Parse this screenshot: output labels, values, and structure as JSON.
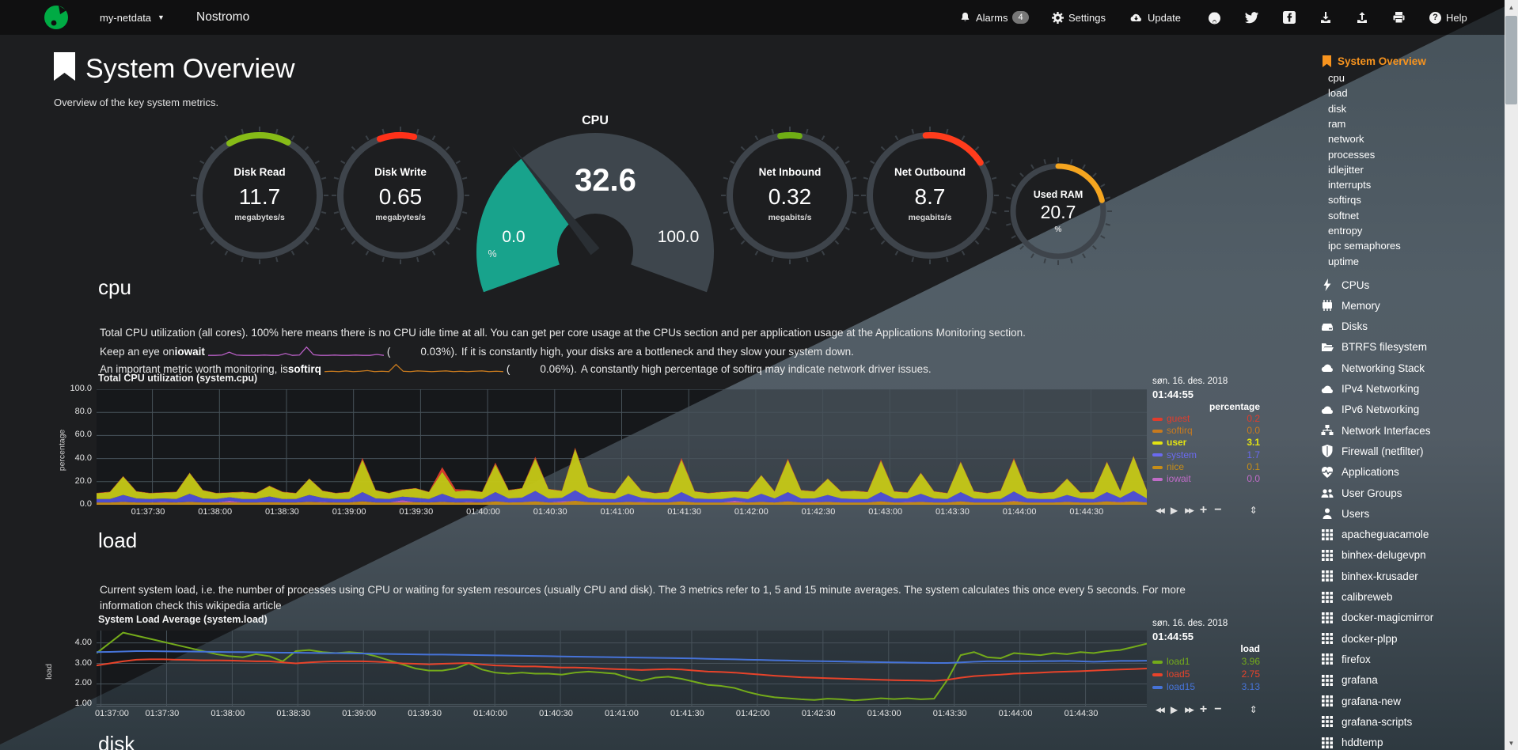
{
  "navbar": {
    "menu_label": "my-netdata",
    "hostname": "Nostromo",
    "alarms_label": "Alarms",
    "alarms_count": "4",
    "settings_label": "Settings",
    "update_label": "Update",
    "help_label": "Help"
  },
  "page": {
    "title": "System Overview",
    "subtitle": "Overview of the key system metrics."
  },
  "gauges": [
    {
      "label": "Disk Read",
      "value": "11.7",
      "unit": "megabytes/s",
      "color": "#86bb17",
      "arc": [
        -30,
        28
      ]
    },
    {
      "label": "Disk Write",
      "value": "0.65",
      "unit": "megabytes/s",
      "color": "#ff3119",
      "arc": [
        -20,
        13
      ]
    },
    {
      "label": "Net Inbound",
      "value": "0.32",
      "unit": "megabits/s",
      "color": "#6fae14",
      "arc": [
        -9,
        9
      ]
    },
    {
      "label": "Net Outbound",
      "value": "8.7",
      "unit": "megabits/s",
      "color": "#ff3c1c",
      "arc": [
        -4,
        57
      ]
    },
    {
      "label": "Used RAM",
      "value": "20.7",
      "unit": "%",
      "color": "#f5a51f",
      "arc": [
        0,
        76
      ]
    }
  ],
  "cpu_gauge": {
    "label": "CPU",
    "value": "32.6",
    "min": "0.0",
    "max": "100.0",
    "unit": "%",
    "percent": 32.6,
    "fill": "#18a38c",
    "body": "#3e464d"
  },
  "sections": {
    "cpu": {
      "heading": "cpu",
      "p1": "Total CPU utilization (all cores). 100% here means there is no CPU idle time at all. You can get per core usage at the CPUs section and per application usage at the Applications Monitoring section.",
      "p2_pre": "Keep an eye on ",
      "p2_key": "iowait",
      "p2_open": "(",
      "p2_val": "0.03%).",
      "p2_rest": "If it is constantly high, your disks are a bottleneck and they slow your system down.",
      "p3_pre": "An important metric worth monitoring, is ",
      "p3_key": "softirq",
      "p3_open": "(",
      "p3_val": "0.06%).",
      "p3_rest": "A constantly high percentage of softirq may indicate network driver issues."
    },
    "load": {
      "heading": "load",
      "p_line1": "Current system load, i.e. the number of processes using CPU or waiting for system resources (usually CPU and disk). The 3 metrics refer to 1, 5 and 15 minute averages. The system calculates this once every 5 seconds. For more",
      "p_line2": "information check this wikipedia article"
    },
    "disk": {
      "heading": "disk"
    }
  },
  "inline_charts": {
    "iowait": {
      "color": "#b85fc4",
      "values": [
        0.2,
        0.2,
        0.3,
        1.2,
        0.3,
        0.2,
        0.2,
        0.2,
        0.3,
        0.2,
        0.2,
        0.8,
        0.2,
        0.3,
        2.8,
        0.4,
        0.2,
        0.2,
        0.3,
        0.2,
        0.2,
        0.3,
        0.2,
        0.2,
        0.5,
        0.2
      ]
    },
    "softirq": {
      "color": "#c87a1e",
      "values": [
        0.5,
        0.6,
        0.5,
        0.7,
        0.5,
        0.6,
        0.8,
        0.5,
        0.6,
        0.5,
        2.5,
        0.6,
        0.5,
        0.7,
        0.6,
        0.5,
        0.6,
        0.7,
        0.5,
        0.6,
        0.5,
        0.6,
        0.7,
        0.5,
        0.6,
        0.5
      ]
    }
  },
  "chart_data": [
    {
      "id": "cpu",
      "type": "area",
      "title": "Total CPU utilization (system.cpu)",
      "ylabel": "percentage",
      "date": "søn. 16. des. 2018",
      "time": "01:44:55",
      "legend_header": "percentage",
      "ylim": [
        0,
        100
      ],
      "yticks": [
        {
          "v": 0,
          "label": "0.0"
        },
        {
          "v": 20,
          "label": "20.0"
        },
        {
          "v": 40,
          "label": "40.0"
        },
        {
          "v": 60,
          "label": "60.0"
        },
        {
          "v": 80,
          "label": "80.0"
        },
        {
          "v": 100,
          "label": "100.0"
        }
      ],
      "xticks": [
        "01:37:30",
        "01:38:00",
        "01:38:30",
        "01:39:00",
        "01:39:30",
        "01:40:00",
        "01:40:30",
        "01:41:00",
        "01:41:30",
        "01:42:00",
        "01:42:30",
        "01:43:00",
        "01:43:30",
        "01:44:00",
        "01:44:30"
      ],
      "series": [
        {
          "name": "nice",
          "color": "#c78d17",
          "values": [
            2,
            2,
            2.5,
            2,
            2,
            2,
            2,
            2.5,
            2,
            2,
            2,
            2,
            2,
            2.2,
            2,
            2,
            2.5,
            2,
            2,
            2,
            3,
            2,
            2,
            2,
            2.2,
            2,
            2.5,
            2,
            2,
            2,
            3,
            2,
            2.2,
            3,
            2,
            2,
            3.5,
            2.2,
            2,
            2,
            2.5,
            2,
            2,
            2,
            3,
            2,
            2,
            2,
            2,
            2,
            2.5,
            2,
            3,
            2,
            2,
            2.5,
            2,
            2,
            2,
            3,
            2,
            2,
            2.5,
            2,
            2,
            3,
            2,
            2,
            2,
            3,
            2,
            2,
            2,
            2.5,
            2,
            2,
            3,
            2,
            3,
            2
          ]
        },
        {
          "name": "iowait",
          "color": "#b85fc4",
          "values": [
            0,
            0,
            0,
            0,
            0,
            0.5,
            0,
            0,
            0,
            0,
            1.5,
            0,
            0,
            0,
            0,
            0,
            0,
            0.5,
            0,
            0,
            0,
            0,
            0,
            2,
            0,
            0,
            0,
            0,
            0.5,
            0,
            0,
            0,
            0,
            0,
            0,
            1,
            0,
            0,
            0,
            0,
            0,
            0.5,
            0,
            0,
            0,
            0,
            0,
            0,
            1.5,
            0,
            0,
            0,
            0,
            0,
            0.5,
            0,
            0,
            0,
            0,
            0,
            0,
            0.5,
            0,
            0,
            0,
            0,
            0,
            0,
            0,
            0.5,
            0,
            0,
            0,
            0,
            0,
            0,
            0,
            0.5,
            0,
            0
          ]
        },
        {
          "name": "system",
          "color": "#5050d8",
          "values": [
            3,
            3,
            6,
            3.5,
            3,
            3,
            3,
            7,
            3.5,
            3,
            3,
            3,
            3,
            5,
            3,
            3,
            6,
            3.5,
            3,
            3,
            8,
            3.5,
            3,
            3,
            4,
            3,
            7,
            3.5,
            3,
            3,
            8,
            3.5,
            4,
            9,
            3.5,
            3,
            9,
            4,
            3,
            3,
            7,
            3.5,
            3,
            3,
            8,
            3.5,
            3,
            3,
            3,
            3,
            7,
            3.5,
            8,
            3.5,
            3,
            6,
            3.5,
            3,
            3,
            8,
            3.5,
            3,
            7,
            3.5,
            3,
            8,
            3.5,
            3,
            3,
            8,
            3.5,
            3,
            3,
            6,
            3.5,
            3,
            8,
            3.5,
            9,
            3.5
          ]
        },
        {
          "name": "user",
          "color": "#c6c916",
          "values": [
            5,
            6,
            16,
            6,
            5,
            5,
            6,
            18,
            7,
            5,
            4,
            6,
            5,
            9,
            6,
            5,
            14,
            6,
            5,
            6,
            28,
            7,
            5,
            6,
            8,
            6,
            19,
            6,
            7,
            6,
            24,
            7,
            8,
            28,
            8,
            6,
            36,
            9,
            6,
            5,
            16,
            6,
            5,
            6,
            28,
            6,
            5,
            6,
            5,
            6,
            16,
            6,
            28,
            7,
            6,
            14,
            6,
            7,
            6,
            27,
            6,
            5,
            18,
            6,
            5,
            26,
            6,
            5,
            7,
            28,
            6,
            5,
            6,
            14,
            5,
            6,
            26,
            6,
            30,
            7
          ]
        },
        {
          "name": "guest",
          "color": "#e23c2c",
          "values": [
            0.3,
            0.3,
            0.3,
            0.3,
            0.3,
            0.3,
            0.3,
            0.3,
            0.3,
            0.3,
            0.3,
            0.3,
            0.3,
            0.3,
            0.3,
            0.3,
            0.3,
            0.3,
            0.3,
            0.3,
            1.5,
            0.3,
            0.3,
            0.3,
            0.3,
            0.3,
            4,
            2,
            0.3,
            0.3,
            1.5,
            0.3,
            0.3,
            1.5,
            0.3,
            0.3,
            1,
            0.3,
            0.3,
            0.3,
            0.3,
            0.3,
            0.3,
            0.3,
            1.5,
            0.3,
            0.3,
            0.3,
            0.3,
            0.3,
            0.3,
            0.3,
            1,
            0.3,
            0.3,
            0.3,
            0.3,
            0.3,
            0.3,
            1,
            0.3,
            0.3,
            0.3,
            0.3,
            0.3,
            0.5,
            0.3,
            0.3,
            0.3,
            1,
            0.3,
            0.3,
            0.3,
            0.3,
            0.3,
            0.3,
            0.5,
            0.3,
            0.5,
            0.3
          ]
        }
      ],
      "legend_rows": [
        {
          "name": "guest",
          "color": "#e23c2c",
          "value": "0.2"
        },
        {
          "name": "softirq",
          "color": "#c87a1e",
          "value": "0.0"
        },
        {
          "name": "user",
          "color": "#e3e312",
          "value": "3.1",
          "bold": true
        },
        {
          "name": "system",
          "color": "#6a6af0",
          "value": "1.7"
        },
        {
          "name": "nice",
          "color": "#c78d17",
          "value": "0.1"
        },
        {
          "name": "iowait",
          "color": "#c06cc8",
          "value": "0.0"
        }
      ]
    },
    {
      "id": "load",
      "type": "line",
      "title": "System Load Average (system.load)",
      "ylabel": "load",
      "date": "søn. 16. des. 2018",
      "time": "01:44:55",
      "legend_header": "load",
      "ylim": [
        0.9,
        4.6
      ],
      "yticks": [
        {
          "v": 1,
          "label": "1.00"
        },
        {
          "v": 2,
          "label": "2.00"
        },
        {
          "v": 3,
          "label": "3.00"
        },
        {
          "v": 4,
          "label": "4.00"
        }
      ],
      "xticks": [
        "01:37:00",
        "01:37:30",
        "01:38:00",
        "01:38:30",
        "01:39:00",
        "01:39:30",
        "01:40:00",
        "01:40:30",
        "01:41:00",
        "01:41:30",
        "01:42:00",
        "01:42:30",
        "01:43:00",
        "01:43:30",
        "01:44:00",
        "01:44:30"
      ],
      "series": [
        {
          "name": "load1",
          "color": "#74ab1a",
          "values": [
            3.5,
            4.0,
            4.5,
            4.35,
            4.2,
            4.05,
            3.9,
            3.75,
            3.6,
            3.45,
            3.35,
            3.3,
            3.45,
            3.35,
            3.1,
            3.6,
            3.65,
            3.55,
            3.5,
            3.55,
            3.5,
            3.35,
            3.15,
            2.95,
            2.75,
            2.65,
            2.65,
            2.75,
            3.0,
            2.7,
            2.55,
            2.5,
            2.55,
            2.5,
            2.5,
            2.45,
            2.55,
            2.6,
            2.55,
            2.5,
            2.3,
            2.15,
            2.3,
            2.35,
            2.25,
            2.1,
            1.95,
            1.9,
            1.8,
            1.6,
            1.45,
            1.35,
            1.3,
            1.25,
            1.22,
            1.28,
            1.25,
            1.2,
            1.24,
            1.3,
            1.26,
            1.3,
            1.25,
            1.28,
            2.2,
            3.4,
            3.55,
            3.3,
            3.25,
            3.5,
            3.45,
            3.4,
            3.5,
            3.45,
            3.55,
            3.5,
            3.6,
            3.65,
            3.8,
            3.96
          ]
        },
        {
          "name": "load5",
          "color": "#e8432a",
          "values": [
            2.9,
            3.0,
            3.1,
            3.18,
            3.2,
            3.2,
            3.18,
            3.17,
            3.15,
            3.15,
            3.14,
            3.12,
            3.1,
            3.1,
            3.05,
            3.0,
            3.05,
            3.08,
            3.1,
            3.1,
            3.1,
            3.08,
            3.05,
            3.0,
            2.98,
            2.95,
            2.98,
            3.0,
            3.02,
            2.95,
            2.9,
            2.88,
            2.85,
            2.85,
            2.82,
            2.8,
            2.8,
            2.78,
            2.75,
            2.72,
            2.7,
            2.68,
            2.7,
            2.72,
            2.7,
            2.65,
            2.6,
            2.58,
            2.55,
            2.5,
            2.45,
            2.4,
            2.36,
            2.32,
            2.3,
            2.28,
            2.26,
            2.24,
            2.22,
            2.2,
            2.18,
            2.17,
            2.16,
            2.15,
            2.2,
            2.3,
            2.38,
            2.42,
            2.45,
            2.5,
            2.52,
            2.55,
            2.58,
            2.6,
            2.62,
            2.65,
            2.68,
            2.7,
            2.72,
            2.75
          ]
        },
        {
          "name": "load15",
          "color": "#4673d8",
          "values": [
            3.55,
            3.56,
            3.58,
            3.6,
            3.6,
            3.59,
            3.58,
            3.58,
            3.57,
            3.56,
            3.55,
            3.55,
            3.54,
            3.53,
            3.52,
            3.52,
            3.51,
            3.5,
            3.5,
            3.49,
            3.48,
            3.47,
            3.46,
            3.45,
            3.44,
            3.43,
            3.43,
            3.42,
            3.41,
            3.4,
            3.39,
            3.38,
            3.37,
            3.36,
            3.35,
            3.34,
            3.33,
            3.32,
            3.31,
            3.3,
            3.29,
            3.28,
            3.27,
            3.26,
            3.25,
            3.24,
            3.22,
            3.21,
            3.2,
            3.18,
            3.17,
            3.15,
            3.14,
            3.12,
            3.11,
            3.1,
            3.09,
            3.08,
            3.07,
            3.06,
            3.05,
            3.04,
            3.03,
            3.02,
            3.02,
            3.05,
            3.08,
            3.1,
            3.1,
            3.1,
            3.1,
            3.11,
            3.11,
            3.12,
            3.1,
            3.08,
            3.1,
            3.12,
            3.12,
            3.13
          ]
        }
      ],
      "legend_rows": [
        {
          "name": "load1",
          "color": "#74ab1a",
          "value": "3.96"
        },
        {
          "name": "load5",
          "color": "#e8432a",
          "value": "2.75"
        },
        {
          "name": "load15",
          "color": "#4673d8",
          "value": "3.13"
        }
      ]
    }
  ],
  "sidebar": {
    "active_label": "System Overview",
    "links": [
      "cpu",
      "load",
      "disk",
      "ram",
      "network",
      "processes",
      "idlejitter",
      "interrupts",
      "softirqs",
      "softnet",
      "entropy",
      "ipc semaphores",
      "uptime"
    ],
    "menu": [
      {
        "icon": "bolt-icon",
        "label": "CPUs"
      },
      {
        "icon": "memory-icon",
        "label": "Memory"
      },
      {
        "icon": "hdd-icon",
        "label": "Disks"
      },
      {
        "icon": "folder-icon",
        "label": "BTRFS filesystem"
      },
      {
        "icon": "cloud-icon",
        "label": "Networking Stack"
      },
      {
        "icon": "cloud-icon",
        "label": "IPv4 Networking"
      },
      {
        "icon": "cloud-icon",
        "label": "IPv6 Networking"
      },
      {
        "icon": "sitemap-icon",
        "label": "Network Interfaces"
      },
      {
        "icon": "shield-icon",
        "label": "Firewall (netfilter)"
      },
      {
        "icon": "heartbeat-icon",
        "label": "Applications"
      },
      {
        "icon": "users-icon",
        "label": "User Groups"
      },
      {
        "icon": "user-icon",
        "label": "Users"
      },
      {
        "icon": "grid-icon",
        "label": "apacheguacamole"
      },
      {
        "icon": "grid-icon",
        "label": "binhex-delugevpn"
      },
      {
        "icon": "grid-icon",
        "label": "binhex-krusader"
      },
      {
        "icon": "grid-icon",
        "label": "calibreweb"
      },
      {
        "icon": "grid-icon",
        "label": "docker-magicmirror"
      },
      {
        "icon": "grid-icon",
        "label": "docker-plpp"
      },
      {
        "icon": "grid-icon",
        "label": "firefox"
      },
      {
        "icon": "grid-icon",
        "label": "grafana"
      },
      {
        "icon": "grid-icon",
        "label": "grafana-new"
      },
      {
        "icon": "grid-icon",
        "label": "grafana-scripts"
      },
      {
        "icon": "grid-icon",
        "label": "hddtemp"
      }
    ]
  }
}
